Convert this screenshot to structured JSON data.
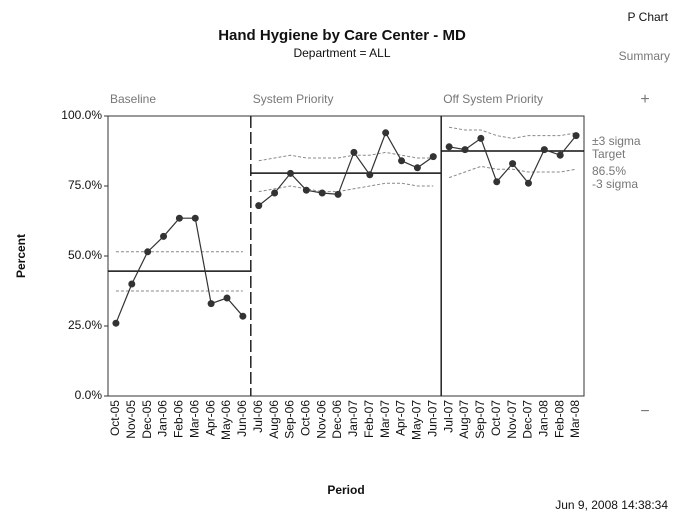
{
  "chart_data": {
    "type": "pchart",
    "title": "Hand Hygiene by Care Center - MD",
    "subtitle": "Department = ALL",
    "chart_kind": "P Chart",
    "summary": "Summary",
    "ylabel": "Percent",
    "xlabel": "Period",
    "timestamp": "Jun 9, 2008 14:38:34",
    "annotations": [
      "±3 sigma",
      "Target",
      "86.5%",
      "-3 sigma"
    ],
    "categories": [
      "Oct-05",
      "Nov-05",
      "Dec-05",
      "Jan-06",
      "Feb-06",
      "Mar-06",
      "Apr-06",
      "May-06",
      "Jun-06",
      "Jul-06",
      "Aug-06",
      "Sep-06",
      "Oct-06",
      "Nov-06",
      "Dec-06",
      "Jan-07",
      "Feb-07",
      "Mar-07",
      "Apr-07",
      "May-07",
      "Jun-07",
      "Jul-07",
      "Aug-07",
      "Sep-07",
      "Oct-07",
      "Nov-07",
      "Dec-07",
      "Jan-08",
      "Feb-08",
      "Mar-08"
    ],
    "values": [
      26,
      40,
      51.5,
      57,
      63.5,
      63.5,
      33,
      35,
      28.5,
      68,
      72.5,
      79.5,
      73.5,
      72.5,
      72,
      87,
      79,
      94,
      84,
      81.5,
      85.5,
      89,
      88,
      92,
      76.5,
      83,
      76,
      88,
      86,
      93
    ],
    "ucl": [
      51.5,
      51.5,
      51.5,
      51.5,
      51.5,
      51.5,
      51.5,
      51.5,
      51.5,
      84,
      85,
      86,
      85,
      85,
      85,
      86,
      86,
      87,
      86,
      85,
      85,
      96,
      95,
      95,
      93,
      92,
      93,
      93,
      93,
      94
    ],
    "lcl": [
      37.5,
      37.5,
      37.5,
      37.5,
      37.5,
      37.5,
      37.5,
      37.5,
      37.5,
      73,
      74,
      75,
      74,
      73,
      73,
      74,
      75,
      76,
      76,
      75,
      75,
      78,
      80,
      82,
      81,
      81,
      80,
      80,
      80,
      81
    ],
    "phases": [
      {
        "name": "Baseline",
        "start": 0,
        "center": 44.6
      },
      {
        "name": "System Priority",
        "start": 9,
        "center": 79.6
      },
      {
        "name": "Off System Priority",
        "start": 21,
        "center": 87.5
      }
    ],
    "color": "#333333",
    "ylim": [
      0,
      100
    ],
    "yticks": [
      {
        "value": 0,
        "label": "0.0%"
      },
      {
        "value": 25,
        "label": "25.0%"
      },
      {
        "value": 50,
        "label": "50.0%"
      },
      {
        "value": 75,
        "label": "75.0%"
      },
      {
        "value": 100,
        "label": "100.0%"
      }
    ]
  }
}
